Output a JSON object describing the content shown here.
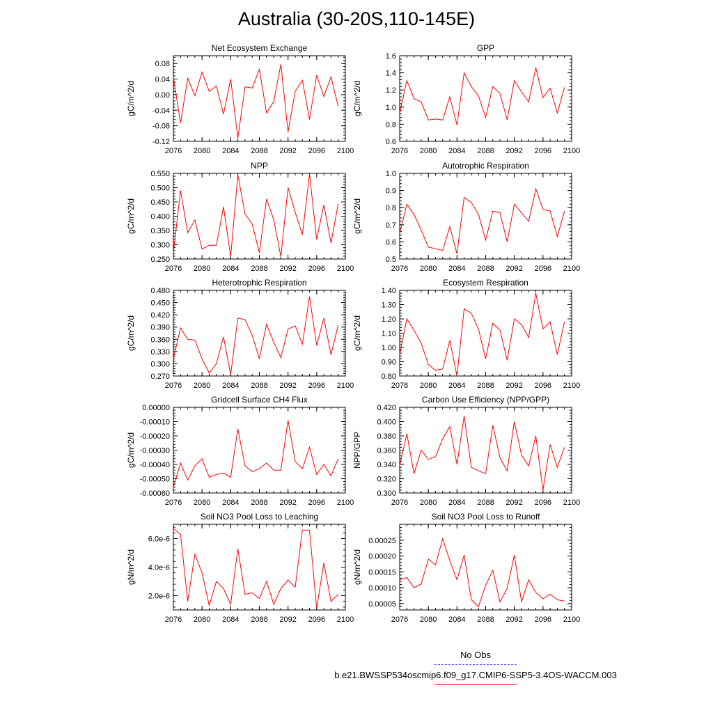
{
  "title": "Australia (30-20S,110-145E)",
  "legend": {
    "obs_label": "No Obs",
    "obs_color": "#4a4aff",
    "model_label": "b.e21.BWSSP534oscmip6.f09_g17.CMIP6-SSP5-3.4OS-WACCM.003",
    "model_color": "#ff0000"
  },
  "chart_data": [
    {
      "type": "line",
      "title": "Net Ecosystem Exchange",
      "ylabel": "gC/m^2/d",
      "xlim": [
        2076,
        2100
      ],
      "ylim": [
        -0.12,
        0.1
      ],
      "xticks": [
        "2076",
        "2080",
        "2084",
        "2088",
        "2092",
        "2096",
        "2100"
      ],
      "yticks": [
        "-0.12",
        "-0.08",
        "-0.04",
        "0.00",
        "0.04",
        "0.08"
      ],
      "x": [
        2076,
        2077,
        2078,
        2079,
        2080,
        2081,
        2082,
        2083,
        2084,
        2085,
        2086,
        2087,
        2088,
        2089,
        2090,
        2091,
        2092,
        2093,
        2094,
        2095,
        2096,
        2097,
        2098,
        2099
      ],
      "series": [
        {
          "values": [
            0.045,
            -0.073,
            0.042,
            -0.003,
            0.058,
            0.008,
            0.022,
            -0.05,
            0.04,
            -0.112,
            0.02,
            0.017,
            0.065,
            -0.047,
            -0.018,
            0.078,
            -0.096,
            0.008,
            0.037,
            -0.064,
            0.05,
            -0.005,
            0.046,
            -0.03
          ]
        }
      ]
    },
    {
      "type": "line",
      "title": "GPP",
      "ylabel": "gC/m^2/d",
      "xlim": [
        2076,
        2100
      ],
      "ylim": [
        0.6,
        1.6
      ],
      "xticks": [
        "2076",
        "2080",
        "2084",
        "2088",
        "2092",
        "2096",
        "2100"
      ],
      "yticks": [
        "0.6",
        "0.8",
        "1.0",
        "1.2",
        "1.4",
        "1.6"
      ],
      "x": [
        2076,
        2077,
        2078,
        2079,
        2080,
        2081,
        2082,
        2083,
        2084,
        2085,
        2086,
        2087,
        2088,
        2089,
        2090,
        2091,
        2092,
        2093,
        2094,
        2095,
        2096,
        2097,
        2098,
        2099
      ],
      "series": [
        {
          "values": [
            0.93,
            1.31,
            1.1,
            1.06,
            0.85,
            0.86,
            0.85,
            1.12,
            0.79,
            1.4,
            1.24,
            1.13,
            0.88,
            1.24,
            1.16,
            0.85,
            1.31,
            1.18,
            1.06,
            1.46,
            1.11,
            1.22,
            0.93,
            1.23
          ]
        }
      ]
    },
    {
      "type": "line",
      "title": "NPP",
      "ylabel": "gC/m^2/d",
      "xlim": [
        2076,
        2100
      ],
      "ylim": [
        0.25,
        0.55
      ],
      "xticks": [
        "2076",
        "2080",
        "2084",
        "2088",
        "2092",
        "2096",
        "2100"
      ],
      "yticks": [
        "0.250",
        "0.300",
        "0.350",
        "0.400",
        "0.450",
        "0.500",
        "0.550"
      ],
      "x": [
        2076,
        2077,
        2078,
        2079,
        2080,
        2081,
        2082,
        2083,
        2084,
        2085,
        2086,
        2087,
        2088,
        2089,
        2090,
        2091,
        2092,
        2093,
        2094,
        2095,
        2096,
        2097,
        2098,
        2099
      ],
      "series": [
        {
          "values": [
            0.272,
            0.49,
            0.342,
            0.387,
            0.285,
            0.298,
            0.298,
            0.433,
            0.258,
            0.545,
            0.408,
            0.373,
            0.272,
            0.46,
            0.388,
            0.258,
            0.5,
            0.414,
            0.335,
            0.548,
            0.318,
            0.44,
            0.306,
            0.443
          ]
        }
      ]
    },
    {
      "type": "line",
      "title": "Autotrophic Respiration",
      "ylabel": "gC/m^2/d",
      "xlim": [
        2076,
        2100
      ],
      "ylim": [
        0.5,
        1.0
      ],
      "xticks": [
        "2076",
        "2080",
        "2084",
        "2088",
        "2092",
        "2096",
        "2100"
      ],
      "yticks": [
        "0.5",
        "0.6",
        "0.7",
        "0.8",
        "0.9",
        "1.0"
      ],
      "x": [
        2076,
        2077,
        2078,
        2079,
        2080,
        2081,
        2082,
        2083,
        2084,
        2085,
        2086,
        2087,
        2088,
        2089,
        2090,
        2091,
        2092,
        2093,
        2094,
        2095,
        2096,
        2097,
        2098,
        2099
      ],
      "series": [
        {
          "values": [
            0.65,
            0.82,
            0.76,
            0.67,
            0.57,
            0.56,
            0.55,
            0.69,
            0.53,
            0.86,
            0.83,
            0.76,
            0.61,
            0.78,
            0.77,
            0.6,
            0.82,
            0.77,
            0.72,
            0.91,
            0.79,
            0.78,
            0.63,
            0.78
          ]
        }
      ]
    },
    {
      "type": "line",
      "title": "Heterotrophic Respiration",
      "ylabel": "gC/m^2/d",
      "xlim": [
        2076,
        2100
      ],
      "ylim": [
        0.27,
        0.48
      ],
      "xticks": [
        "2076",
        "2080",
        "2084",
        "2088",
        "2092",
        "2096",
        "2100"
      ],
      "yticks": [
        "0.270",
        "0.300",
        "0.330",
        "0.360",
        "0.390",
        "0.420",
        "0.450",
        "0.480"
      ],
      "x": [
        2076,
        2077,
        2078,
        2079,
        2080,
        2081,
        2082,
        2083,
        2084,
        2085,
        2086,
        2087,
        2088,
        2089,
        2090,
        2091,
        2092,
        2093,
        2094,
        2095,
        2096,
        2097,
        2098,
        2099
      ],
      "series": [
        {
          "values": [
            0.312,
            0.388,
            0.36,
            0.358,
            0.312,
            0.277,
            0.3,
            0.366,
            0.273,
            0.412,
            0.408,
            0.37,
            0.312,
            0.397,
            0.353,
            0.315,
            0.385,
            0.393,
            0.348,
            0.465,
            0.345,
            0.412,
            0.322,
            0.395
          ]
        }
      ]
    },
    {
      "type": "line",
      "title": "Ecosystem Respiration",
      "ylabel": "gC/m^2/d",
      "xlim": [
        2076,
        2100
      ],
      "ylim": [
        0.8,
        1.4
      ],
      "xticks": [
        "2076",
        "2080",
        "2084",
        "2088",
        "2092",
        "2096",
        "2100"
      ],
      "yticks": [
        "0.80",
        "0.90",
        "1.00",
        "1.10",
        "1.20",
        "1.30",
        "1.40"
      ],
      "x": [
        2076,
        2077,
        2078,
        2079,
        2080,
        2081,
        2082,
        2083,
        2084,
        2085,
        2086,
        2087,
        2088,
        2089,
        2090,
        2091,
        2092,
        2093,
        2094,
        2095,
        2096,
        2097,
        2098,
        2099
      ],
      "series": [
        {
          "values": [
            0.95,
            1.2,
            1.12,
            1.03,
            0.88,
            0.84,
            0.85,
            1.05,
            0.8,
            1.27,
            1.24,
            1.13,
            0.92,
            1.17,
            1.12,
            0.91,
            1.2,
            1.16,
            1.07,
            1.38,
            1.13,
            1.18,
            0.95,
            1.18
          ]
        }
      ]
    },
    {
      "type": "line",
      "title": "Gridcell Surface CH4 Flux",
      "ylabel": "gC/m^2/d",
      "xlim": [
        2076,
        2100
      ],
      "ylim": [
        -0.0006,
        0.0
      ],
      "xticks": [
        "2076",
        "2080",
        "2084",
        "2088",
        "2092",
        "2096",
        "2100"
      ],
      "yticks": [
        "-0.00060",
        "-0.00050",
        "-0.00040",
        "-0.00030",
        "-0.00020",
        "-0.00010",
        "0.00000"
      ],
      "x": [
        2076,
        2077,
        2078,
        2079,
        2080,
        2081,
        2082,
        2083,
        2084,
        2085,
        2086,
        2087,
        2088,
        2089,
        2090,
        2091,
        2092,
        2093,
        2094,
        2095,
        2096,
        2097,
        2098,
        2099
      ],
      "series": [
        {
          "values": [
            -0.00056,
            -0.00039,
            -0.00051,
            -0.00041,
            -0.00036,
            -0.00049,
            -0.00047,
            -0.00046,
            -0.00049,
            -0.00015,
            -0.00041,
            -0.00045,
            -0.00043,
            -0.00039,
            -0.00044,
            -0.00044,
            -9e-05,
            -0.00038,
            -0.00043,
            -0.00028,
            -0.00047,
            -0.0004,
            -0.00048,
            -0.00036
          ]
        }
      ]
    },
    {
      "type": "line",
      "title": "Carbon Use Efficiency (NPP/GPP)",
      "ylabel": "NPP/GPP",
      "xlim": [
        2076,
        2100
      ],
      "ylim": [
        0.3,
        0.42
      ],
      "xticks": [
        "2076",
        "2080",
        "2084",
        "2088",
        "2092",
        "2096",
        "2100"
      ],
      "yticks": [
        "0.300",
        "0.320",
        "0.340",
        "0.360",
        "0.380",
        "0.400",
        "0.420"
      ],
      "x": [
        2076,
        2077,
        2078,
        2079,
        2080,
        2081,
        2082,
        2083,
        2084,
        2085,
        2086,
        2087,
        2088,
        2089,
        2090,
        2091,
        2092,
        2093,
        2094,
        2095,
        2096,
        2097,
        2098,
        2099
      ],
      "series": [
        {
          "values": [
            0.338,
            0.383,
            0.327,
            0.36,
            0.347,
            0.351,
            0.376,
            0.393,
            0.34,
            0.408,
            0.336,
            0.331,
            0.327,
            0.395,
            0.349,
            0.331,
            0.4,
            0.353,
            0.338,
            0.38,
            0.304,
            0.368,
            0.336,
            0.364
          ]
        }
      ]
    },
    {
      "type": "line",
      "title": "Soil NO3 Pool Loss to Leaching",
      "ylabel": "gN/m^2/d",
      "xlim": [
        2076,
        2100
      ],
      "ylim": [
        1e-06,
        7e-06
      ],
      "xticks": [
        "2076",
        "2080",
        "2084",
        "2088",
        "2092",
        "2096",
        "2100"
      ],
      "yticks": [
        "2.0e-6",
        "4.0e-6",
        "6.0e-6"
      ],
      "x": [
        2076,
        2077,
        2078,
        2079,
        2080,
        2081,
        2082,
        2083,
        2084,
        2085,
        2086,
        2087,
        2088,
        2089,
        2090,
        2091,
        2092,
        2093,
        2094,
        2095,
        2096,
        2097,
        2098,
        2099
      ],
      "series": [
        {
          "values": [
            6.7e-06,
            6.3e-06,
            1.6e-06,
            4.9e-06,
            3.6e-06,
            1.3e-06,
            3e-06,
            2.5e-06,
            1.4e-06,
            5.3e-06,
            2.1e-06,
            2.2e-06,
            1.8e-06,
            3e-06,
            1.4e-06,
            2.5e-06,
            3.1e-06,
            2.6e-06,
            6.6e-06,
            6.6e-06,
            1.1e-06,
            4.3e-06,
            1.6e-06,
            2.1e-06
          ]
        }
      ]
    },
    {
      "type": "line",
      "title": "Soil NO3 Pool Loss to Runoff",
      "ylabel": "gN/m^2/d",
      "xlim": [
        2076,
        2100
      ],
      "ylim": [
        3e-05,
        0.0003
      ],
      "xticks": [
        "2076",
        "2080",
        "2084",
        "2088",
        "2092",
        "2096",
        "2100"
      ],
      "yticks": [
        "0.00005",
        "0.00010",
        "0.00015",
        "0.00020",
        "0.00025"
      ],
      "x": [
        2076,
        2077,
        2078,
        2079,
        2080,
        2081,
        2082,
        2083,
        2084,
        2085,
        2086,
        2087,
        2088,
        2089,
        2090,
        2091,
        2092,
        2093,
        2094,
        2095,
        2096,
        2097,
        2098,
        2099
      ],
      "series": [
        {
          "values": [
            0.000125,
            0.000132,
            0.0001,
            0.000112,
            0.00019,
            0.000172,
            0.000255,
            0.000185,
            0.000125,
            0.000203,
            6.2e-05,
            4e-05,
            0.000108,
            0.000155,
            5.5e-05,
            9.8e-05,
            0.000203,
            5.5e-05,
            0.000125,
            8.5e-05,
            6.5e-05,
            8e-05,
            6.2e-05,
            5.8e-05
          ]
        }
      ]
    }
  ]
}
